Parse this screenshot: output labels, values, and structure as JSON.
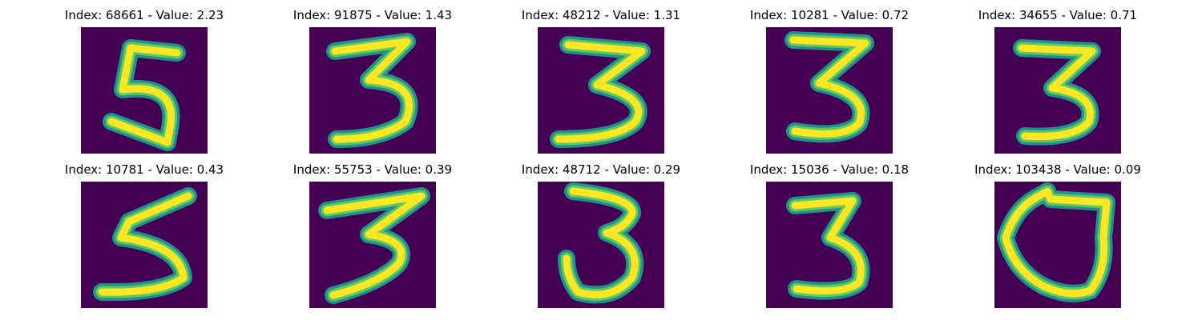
{
  "figure": {
    "background_color": "#440154",
    "glyph_colors": {
      "edge": "#21918c",
      "mid": "#5ec962",
      "core": "#fde725"
    },
    "panels": [
      {
        "title": "Index: 68661 - Value: 2.23",
        "glyph": "digit-5"
      },
      {
        "title": "Index: 91875 - Value: 1.43",
        "glyph": "digit-3"
      },
      {
        "title": "Index: 48212 - Value: 1.31",
        "glyph": "digit-3"
      },
      {
        "title": "Index: 10281 - Value: 0.72",
        "glyph": "digit-3"
      },
      {
        "title": "Index: 34655 - Value: 0.71",
        "glyph": "digit-3"
      },
      {
        "title": "Index: 10781 - Value: 0.43",
        "glyph": "digit-5"
      },
      {
        "title": "Index: 55753 - Value: 0.39",
        "glyph": "digit-3"
      },
      {
        "title": "Index: 48712 - Value: 0.29",
        "glyph": "digit-3"
      },
      {
        "title": "Index: 15036 - Value: 0.18",
        "glyph": "digit-3"
      },
      {
        "title": "Index: 103438 - Value: 0.09",
        "glyph": "digit-0"
      }
    ]
  }
}
